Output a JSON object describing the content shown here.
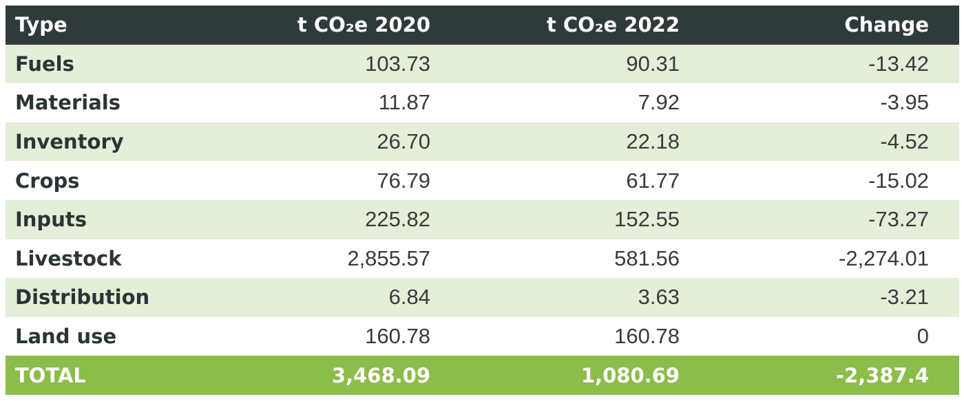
{
  "table": {
    "header": [
      "Type",
      "t CO₂e 2020",
      "t CO₂e 2022",
      "Change"
    ],
    "rows": [
      [
        "Fuels",
        "103.73",
        "90.31",
        "-13.42"
      ],
      [
        "Materials",
        "11.87",
        "7.92",
        "-3.95"
      ],
      [
        "Inventory",
        "26.70",
        "22.18",
        "-4.52"
      ],
      [
        "Crops",
        "76.79",
        "61.77",
        "-15.02"
      ],
      [
        "Inputs",
        "225.82",
        "152.55",
        "-73.27"
      ],
      [
        "Livestock",
        "2,855.57",
        "581.56",
        "-2,274.01"
      ],
      [
        "Distribution",
        "6.84",
        "3.63",
        "-3.21"
      ],
      [
        "Land use",
        "160.78",
        "160.78",
        "0"
      ]
    ],
    "total": [
      "TOTAL",
      "3,468.09",
      "1,080.69",
      "-2,387.4"
    ]
  }
}
